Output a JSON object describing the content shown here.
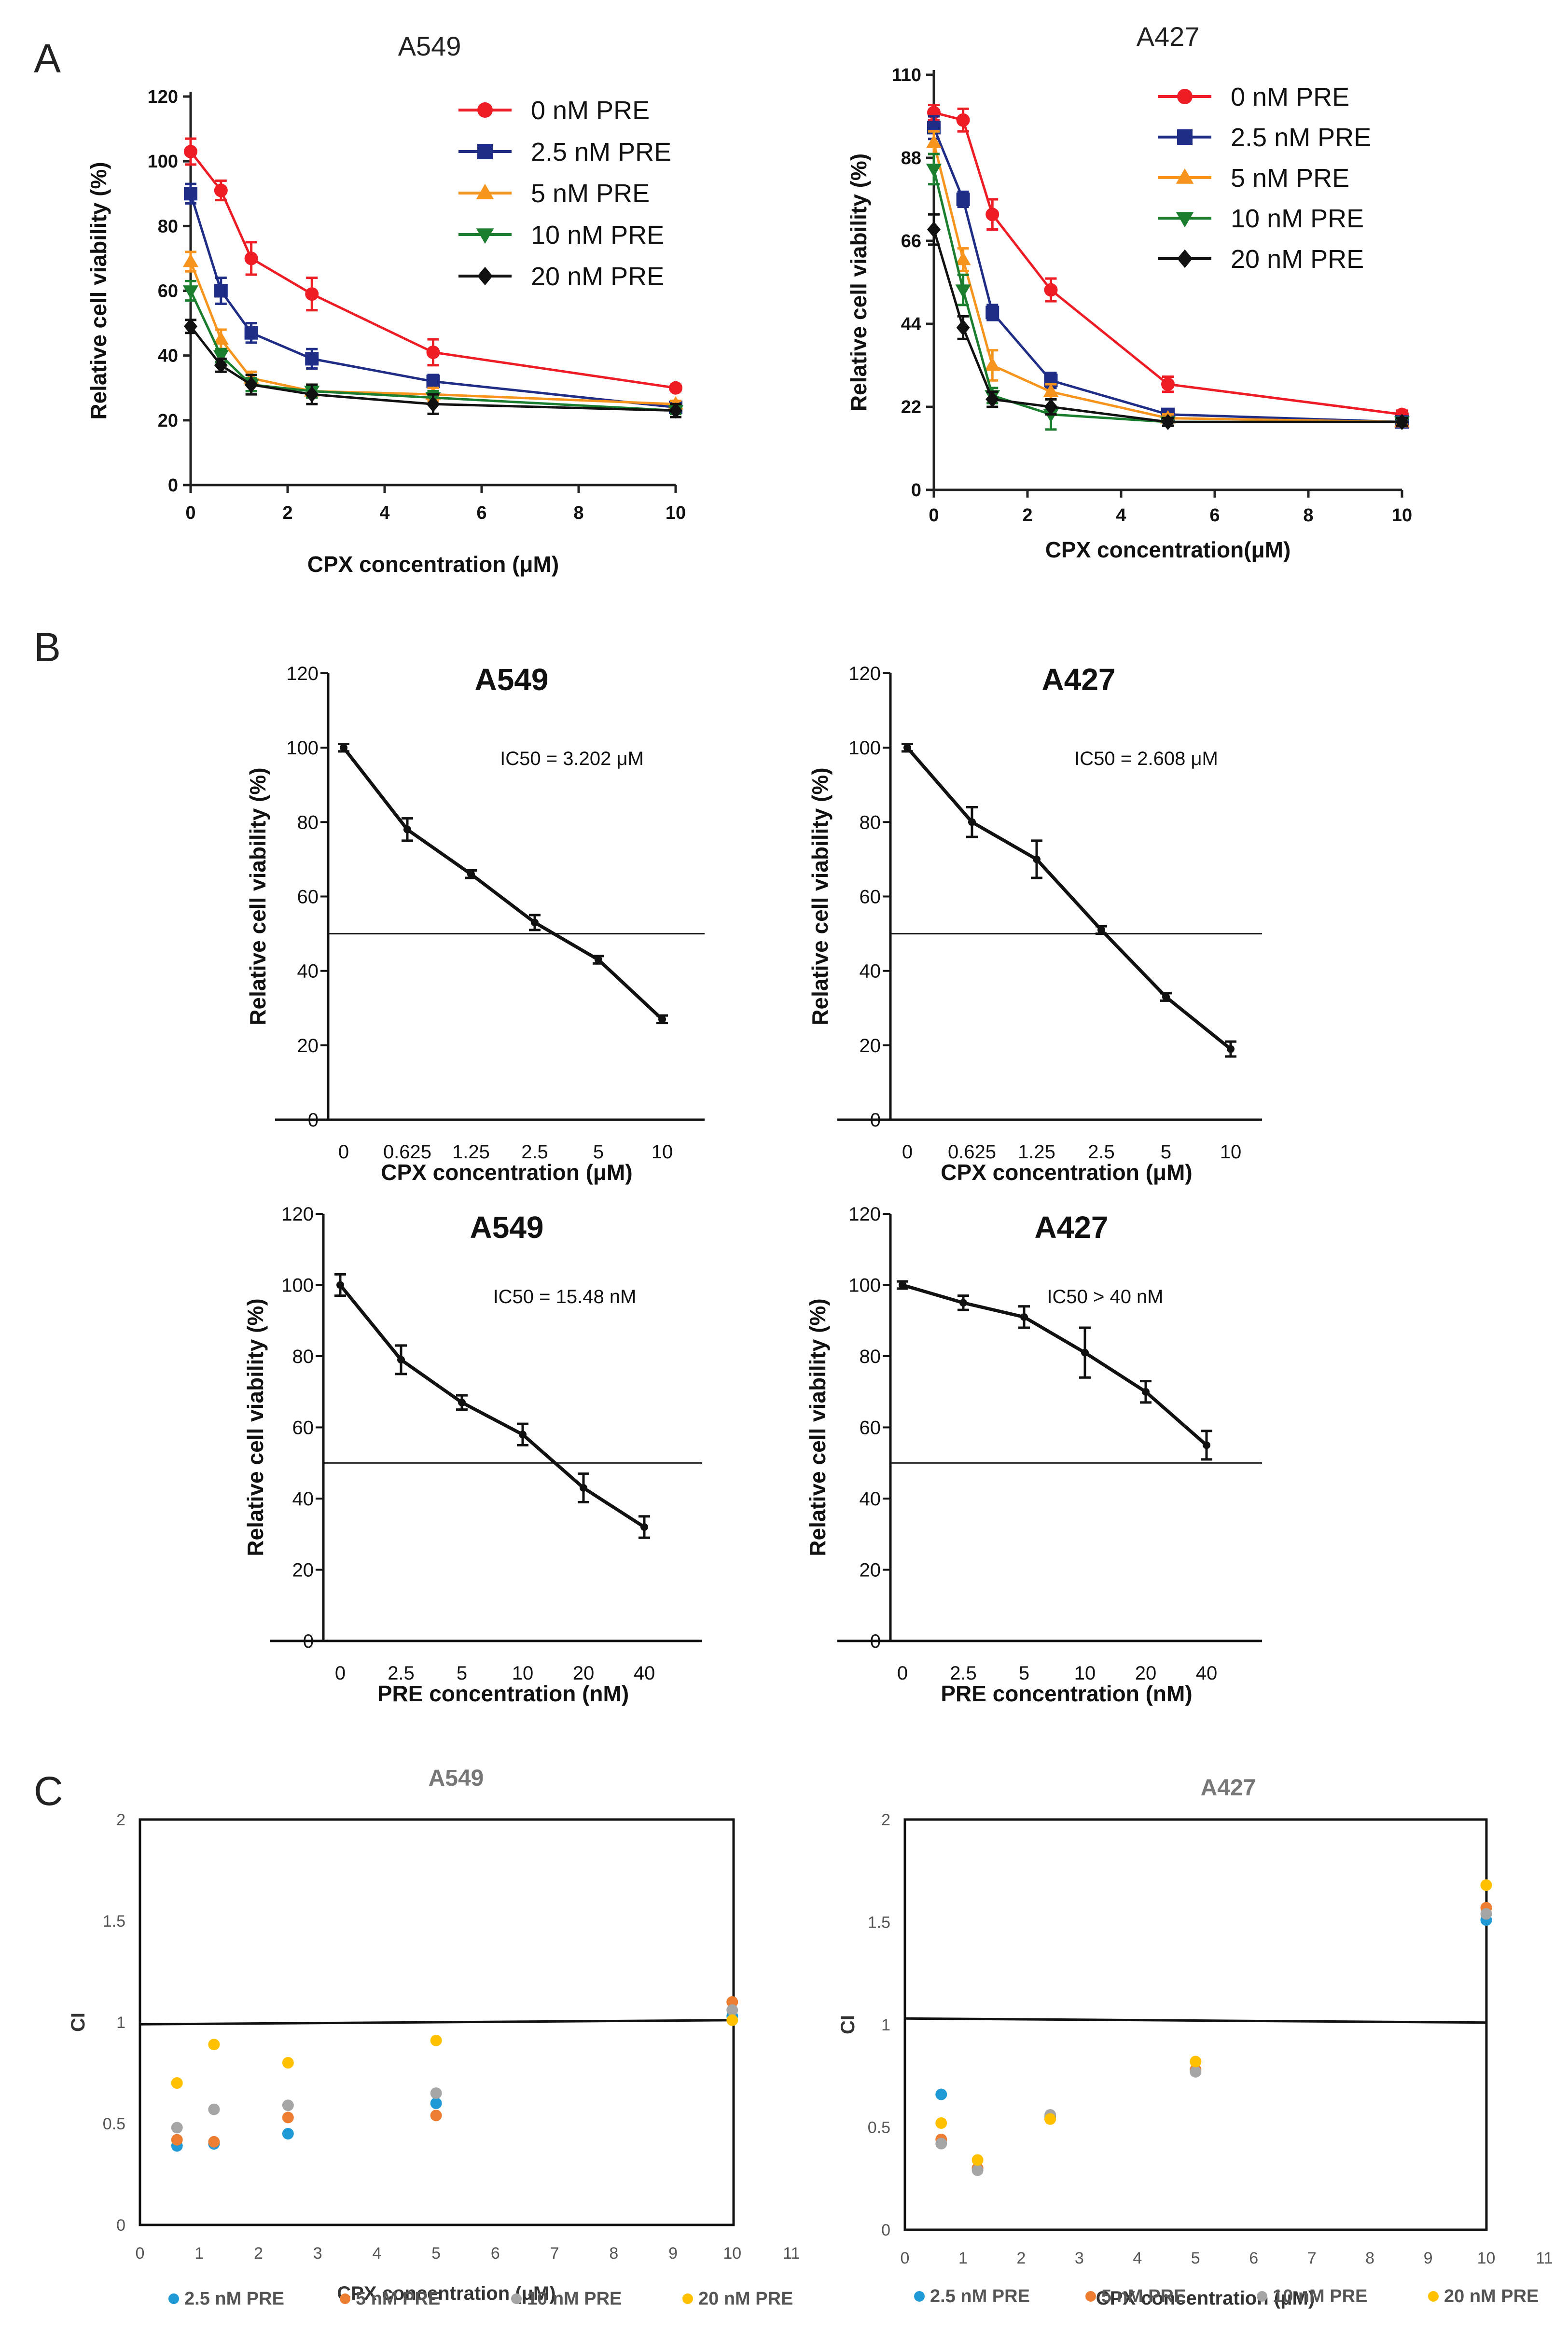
{
  "panel_labels": [
    "A",
    "B",
    "C"
  ],
  "chart_data": [
    {
      "id": "A1",
      "type": "line",
      "title": "A549",
      "xlabel": "CPX concentration (μM)",
      "ylabel": "Relative cell viability (%)",
      "xlim": [
        0,
        10
      ],
      "ylim": [
        0,
        120
      ],
      "xticks": [
        "0",
        "2",
        "4",
        "6",
        "8",
        "10"
      ],
      "yticks": [
        "0",
        "20",
        "40",
        "60",
        "80",
        "100",
        "120"
      ],
      "x": [
        0,
        0.625,
        1.25,
        2.5,
        5,
        10
      ],
      "series": [
        {
          "name": "0 nM    PRE",
          "color": "#ee1c25",
          "marker": "circle",
          "values": [
            103,
            91,
            70,
            59,
            41,
            30
          ],
          "err": [
            4,
            3,
            5,
            5,
            4,
            1
          ]
        },
        {
          "name": "2.5 nM PRE",
          "color": "#1f2d86",
          "marker": "square",
          "values": [
            90,
            60,
            47,
            39,
            32,
            24
          ],
          "err": [
            3,
            4,
            3,
            3,
            2,
            1
          ]
        },
        {
          "name": "5 nM    PRE",
          "color": "#f7941d",
          "marker": "triangle-up",
          "values": [
            69,
            45,
            33,
            29,
            28,
            25
          ],
          "err": [
            3,
            3,
            2,
            2,
            2,
            1
          ]
        },
        {
          "name": "10 nM  PRE",
          "color": "#1b7e2f",
          "marker": "triangle-down",
          "values": [
            60,
            40,
            31,
            29,
            27,
            23
          ],
          "err": [
            3,
            2,
            2,
            2,
            2,
            1
          ]
        },
        {
          "name": "20 nM  PRE",
          "color": "#111111",
          "marker": "diamond",
          "values": [
            49,
            37,
            31,
            28,
            25,
            23
          ],
          "err": [
            2,
            2,
            3,
            3,
            3,
            2
          ]
        }
      ]
    },
    {
      "id": "A2",
      "type": "line",
      "title": "A427",
      "xlabel": "CPX concentration(μM)",
      "ylabel": "Relative cell viability (%)",
      "xlim": [
        0,
        10
      ],
      "ylim": [
        0,
        110
      ],
      "xticks": [
        "0",
        "2",
        "4",
        "6",
        "8",
        "10"
      ],
      "yticks": [
        "0",
        "22",
        "44",
        "66",
        "88",
        "110"
      ],
      "x": [
        0,
        0.625,
        1.25,
        2.5,
        5,
        10
      ],
      "series": [
        {
          "name": "0 nM    PRE",
          "color": "#ee1c25",
          "marker": "circle",
          "values": [
            100,
            98,
            73,
            53,
            28,
            20
          ],
          "err": [
            2,
            3,
            4,
            3,
            2,
            1
          ]
        },
        {
          "name": "2.5 nM PRE",
          "color": "#1f2d86",
          "marker": "square",
          "values": [
            96,
            77,
            47,
            29,
            20,
            18
          ],
          "err": [
            3,
            2,
            2,
            2,
            1,
            1
          ]
        },
        {
          "name": "5 nM    PRE",
          "color": "#f7941d",
          "marker": "triangle-up",
          "values": [
            92,
            61,
            33,
            26,
            19,
            18
          ],
          "err": [
            3,
            3,
            4,
            2,
            1,
            1
          ]
        },
        {
          "name": "10 nM  PRE",
          "color": "#1b7e2f",
          "marker": "triangle-down",
          "values": [
            85,
            53,
            25,
            20,
            18,
            18
          ],
          "err": [
            4,
            4,
            2,
            4,
            1,
            1
          ]
        },
        {
          "name": "20 nM  PRE",
          "color": "#111111",
          "marker": "diamond",
          "values": [
            69,
            43,
            24,
            22,
            18,
            18
          ],
          "err": [
            4,
            3,
            2,
            2,
            1,
            1
          ]
        }
      ]
    },
    {
      "id": "B1",
      "type": "line",
      "title": "A549",
      "annotation": "IC50 = 3.202 μM",
      "xlabel": "CPX concentration (μM)",
      "ylabel": "Relative cell viability (%)",
      "ylim": [
        0,
        120
      ],
      "yticks": [
        "0",
        "20",
        "40",
        "60",
        "80",
        "100",
        "120"
      ],
      "categories": [
        "0",
        "0.625",
        "1.25",
        "2.5",
        "5",
        "10"
      ],
      "values": [
        100,
        78,
        66,
        53,
        43,
        27
      ],
      "err": [
        1,
        3,
        1,
        2,
        1,
        1
      ],
      "reference_line": 50
    },
    {
      "id": "B2",
      "type": "line",
      "title": "A427",
      "annotation": "IC50 = 2.608 μM",
      "xlabel": "CPX concentration (μM)",
      "ylabel": "Relative cell viability (%)",
      "ylim": [
        0,
        120
      ],
      "yticks": [
        "0",
        "20",
        "40",
        "60",
        "80",
        "100",
        "120"
      ],
      "categories": [
        "0",
        "0.625",
        "1.25",
        "2.5",
        "5",
        "10"
      ],
      "values": [
        100,
        80,
        70,
        51,
        33,
        19
      ],
      "err": [
        1,
        4,
        5,
        1,
        1,
        2
      ],
      "reference_line": 50
    },
    {
      "id": "B3",
      "type": "line",
      "title": "A549",
      "annotation": "IC50 = 15.48 nM",
      "xlabel": "PRE concentration (nM)",
      "ylabel": "Relative cell viability (%)",
      "ylim": [
        0,
        120
      ],
      "yticks": [
        "0",
        "20",
        "40",
        "60",
        "80",
        "100",
        "120"
      ],
      "categories": [
        "0",
        "2.5",
        "5",
        "10",
        "20",
        "40"
      ],
      "values": [
        100,
        79,
        67,
        58,
        43,
        32
      ],
      "err": [
        3,
        4,
        2,
        3,
        4,
        3
      ],
      "reference_line": 50
    },
    {
      "id": "B4",
      "type": "line",
      "title": "A427",
      "annotation": "IC50 > 40 nM",
      "xlabel": "PRE concentration (nM)",
      "ylabel": "Relative cell viability (%)",
      "ylim": [
        0,
        120
      ],
      "yticks": [
        "0",
        "20",
        "40",
        "60",
        "80",
        "100",
        "120"
      ],
      "categories": [
        "0",
        "2.5",
        "5",
        "10",
        "20",
        "40"
      ],
      "values": [
        100,
        95,
        91,
        81,
        70,
        55
      ],
      "err": [
        1,
        2,
        3,
        7,
        3,
        4
      ],
      "reference_line": 50
    },
    {
      "id": "C1",
      "type": "scatter",
      "title": "A549",
      "xlabel": "CPX concentration (μM)",
      "ylabel": "CI",
      "xlim": [
        0,
        11
      ],
      "ylim": [
        0,
        2
      ],
      "xticks": [
        "0",
        "1",
        "2",
        "3",
        "4",
        "5",
        "6",
        "7",
        "8",
        "9",
        "10",
        "11"
      ],
      "yticks": [
        "0",
        "0.5",
        "1",
        "1.5",
        "2"
      ],
      "x": [
        0.625,
        1.25,
        2.5,
        5,
        10
      ],
      "reference_line": [
        0.99,
        1.01
      ],
      "series": [
        {
          "name": "2.5 nM PRE",
          "color": "#1f9ad6",
          "values": [
            0.39,
            0.4,
            0.45,
            0.6,
            1.03
          ]
        },
        {
          "name": "5 nM PRE",
          "color": "#ed7d31",
          "values": [
            0.42,
            0.41,
            0.53,
            0.54,
            1.1
          ]
        },
        {
          "name": "10 nM PRE",
          "color": "#a5a5a5",
          "values": [
            0.48,
            0.57,
            0.59,
            0.65,
            1.06
          ]
        },
        {
          "name": "20 nM PRE",
          "color": "#ffc000",
          "values": [
            0.7,
            0.89,
            0.8,
            0.91,
            1.01
          ]
        }
      ]
    },
    {
      "id": "C2",
      "type": "scatter",
      "title": "A427",
      "xlabel": "CPX concentration (μM)",
      "ylabel": "CI",
      "xlim": [
        0,
        11
      ],
      "ylim": [
        0,
        2
      ],
      "xticks": [
        "0",
        "1",
        "2",
        "3",
        "4",
        "5",
        "6",
        "7",
        "8",
        "9",
        "10",
        "11"
      ],
      "yticks": [
        "0",
        "0.5",
        "1",
        "1.5",
        "2"
      ],
      "x": [
        0.625,
        1.25,
        2.5,
        5,
        10
      ],
      "reference_line": [
        1.03,
        1.01
      ],
      "series": [
        {
          "name": "2.5 nM PRE",
          "color": "#1f9ad6",
          "values": [
            0.66,
            0.3,
            0.55,
            0.78,
            1.51
          ]
        },
        {
          "name": "5 nM PRE",
          "color": "#ed7d31",
          "values": [
            0.44,
            0.3,
            0.54,
            0.78,
            1.57
          ]
        },
        {
          "name": "10 nM PRE",
          "color": "#a5a5a5",
          "values": [
            0.42,
            0.29,
            0.56,
            0.77,
            1.54
          ]
        },
        {
          "name": "20 nM PRE",
          "color": "#ffc000",
          "values": [
            0.52,
            0.34,
            0.54,
            0.82,
            1.68
          ]
        }
      ]
    }
  ]
}
